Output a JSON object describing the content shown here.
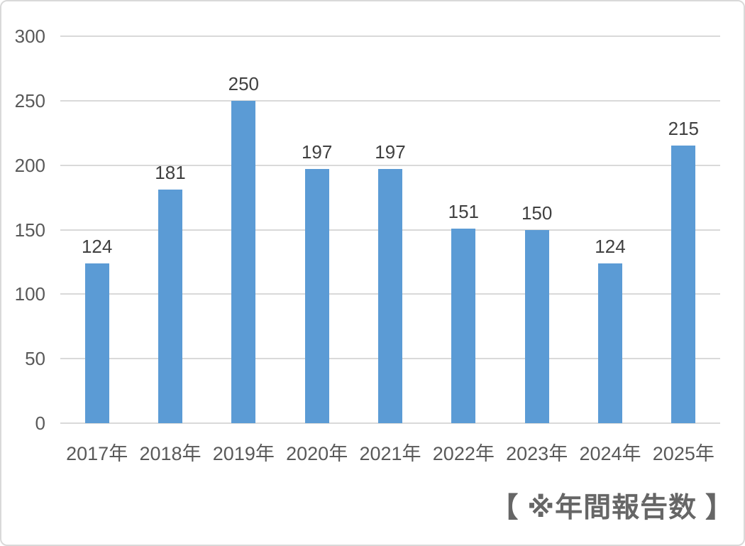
{
  "chart_data": {
    "type": "bar",
    "categories": [
      "2017年",
      "2018年",
      "2019年",
      "2020年",
      "2021年",
      "2022年",
      "2023年",
      "2024年",
      "2025年"
    ],
    "values": [
      124,
      181,
      250,
      197,
      197,
      151,
      150,
      124,
      215
    ],
    "title": "",
    "xlabel": "",
    "ylabel": "",
    "ylim": [
      0,
      300
    ],
    "yticks": [
      0,
      50,
      100,
      150,
      200,
      250,
      300
    ],
    "grid": true,
    "legend_position": "none",
    "data_labels": true,
    "bar_color": "#5b9bd5",
    "gridline_color": "#d9d9d9",
    "axis_label_color": "#595959",
    "value_label_color": "#404040"
  },
  "caption": {
    "text": "【 ※年間報告数 】"
  }
}
